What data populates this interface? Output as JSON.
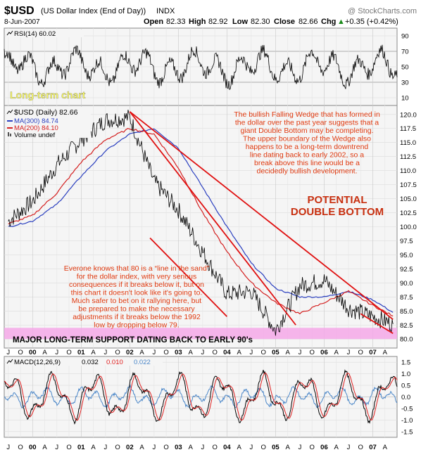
{
  "header": {
    "symbol": "$USD",
    "name": "(US Dollar Index (End of Day))",
    "exchange": "INDX",
    "watermark": "@ StockCharts.com",
    "date": "8-Jun-2007",
    "open_label": "Open",
    "open": "82.33",
    "high_label": "High",
    "high": "82.92",
    "low_label": "Low",
    "low": "82.30",
    "close_label": "Close",
    "close": "82.66",
    "chg_label": "Chg",
    "chg": "+0.35 (+0.42%)",
    "chg_arrow": "▲"
  },
  "rsi_panel": {
    "legend": "RSI(14) 60.02",
    "ticks": [
      90,
      70,
      50,
      30,
      10
    ],
    "range": [
      0,
      100
    ],
    "levels": [
      70,
      30
    ],
    "overlay_text": "Long-term chart"
  },
  "price_panel": {
    "legend_main": "$USD (Daily) 82.66",
    "legend_ma300": "MA(300) 84.74",
    "legend_ma200": "MA(200) 84.10",
    "legend_volume": "Volume undef",
    "ticks": [
      120.0,
      117.5,
      115.0,
      112.5,
      110.0,
      107.5,
      105.0,
      102.5,
      100.0,
      97.5,
      95.0,
      92.5,
      90.0,
      87.5,
      85.0,
      82.5,
      80.0
    ],
    "range": [
      78.4,
      121.6
    ],
    "annotation_wedge": [
      "The bullish Falling Wedge that has formed in",
      "the dollar over the past year suggests that a",
      "giant Double Bottom may be completing.",
      "The upper boundary of the Wedge also",
      "happens to be a long-term downtrend",
      "line dating back to early 2002, so a",
      "break above this line would be a",
      "decidedly bullish development."
    ],
    "annotation_pattern": [
      "POTENTIAL",
      "DOUBLE BOTTOM"
    ],
    "annotation_support": [
      "Everone knows that 80 is a “line in the sand”",
      "for the dollar index, with very serious",
      "consequences if it breaks below it, but on",
      "this chart it doesn't look like it's going to.",
      "Much safer to bet on it rallying here, but",
      "be prepared to make the necessary",
      "adjustments if it breaks below the 1992",
      "low by dropping below 79."
    ],
    "support_band_label": "MAJOR LONG-TERM SUPPORT DATING BACK TO EARLY 90's",
    "support_band_range": [
      80.0,
      82.0
    ]
  },
  "macd_panel": {
    "legend_prefix": "MACD(12,26,9)",
    "macd_value": "0.032",
    "signal_value": "0.010",
    "hist_value": "0.022",
    "ticks": [
      "1.5",
      "1.0",
      "0.5",
      "0.0",
      "-0.5",
      "-1.0",
      "-1.5"
    ],
    "range": [
      -1.75,
      1.75
    ]
  },
  "x_axis": {
    "labels": [
      "J",
      "O",
      "00",
      "A",
      "J",
      "O",
      "01",
      "A",
      "J",
      "O",
      "02",
      "A",
      "J",
      "O",
      "03",
      "A",
      "J",
      "O",
      "04",
      "A",
      "J",
      "O",
      "05",
      "A",
      "J",
      "O",
      "06",
      "A",
      "J",
      "O",
      "07",
      "A"
    ],
    "year_labels": [
      "00",
      "01",
      "02",
      "03",
      "04",
      "05",
      "06",
      "07"
    ]
  },
  "colors": {
    "price": "#000000",
    "ma300": "#2a3fbf",
    "ma200": "#d42020",
    "trendline": "#e01010",
    "annotation": "#e03a10",
    "pattern_text": "#c83010",
    "overlay_text": "#ffff66",
    "panel_bg": "#f5f5f5",
    "band": "#f4a8e8",
    "macd_line": "#000000",
    "signal_line": "#e02020",
    "hist": "#4a86c8"
  },
  "chart_data": [
    {
      "type": "line",
      "title": "RSI(14)",
      "ylim": [
        0,
        100
      ],
      "series": [
        {
          "name": "RSI(14)",
          "last": 60.02
        }
      ],
      "grid": true
    },
    {
      "type": "line",
      "title": "$USD (Daily)",
      "ylim": [
        78.4,
        121.6
      ],
      "x": [
        "1999-07",
        "2000-01",
        "2000-07",
        "2001-01",
        "2001-07",
        "2002-01",
        "2002-07",
        "2003-01",
        "2003-07",
        "2004-01",
        "2004-07",
        "2005-01",
        "2005-07",
        "2006-01",
        "2006-07",
        "2007-01",
        "2007-06"
      ],
      "series": [
        {
          "name": "$USD",
          "values": [
            101.0,
            104.5,
            111.0,
            115.5,
            119.0,
            119.5,
            108.0,
            103.0,
            95.5,
            88.0,
            88.5,
            81.5,
            89.5,
            90.5,
            85.5,
            84.0,
            82.66
          ],
          "last": 82.66
        },
        {
          "name": "MA(300)",
          "values": [
            100.0,
            101.0,
            104.0,
            109.0,
            113.5,
            116.5,
            117.5,
            114.0,
            107.0,
            100.0,
            93.5,
            89.0,
            87.5,
            87.5,
            88.5,
            87.0,
            84.74
          ],
          "last": 84.74
        },
        {
          "name": "MA(200)",
          "values": [
            100.5,
            102.0,
            106.0,
            111.5,
            115.5,
            117.5,
            116.5,
            110.5,
            102.5,
            95.5,
            90.0,
            86.5,
            84.5,
            86.5,
            88.5,
            86.0,
            84.1
          ],
          "last": 84.1
        }
      ],
      "trendlines": [
        {
          "from": [
            "2002-01",
            120.5
          ],
          "to": [
            "2007-06",
            83.5
          ]
        },
        {
          "from": [
            "2002-01",
            120.5
          ],
          "to": [
            "2005-06",
            82.5
          ]
        },
        {
          "from": [
            "2002-06",
            98.0
          ],
          "to": [
            "2004-01",
            84.0
          ]
        },
        {
          "from": [
            "2006-10",
            84.5
          ],
          "to": [
            "2007-06",
            81.0
          ]
        }
      ],
      "grid": true
    },
    {
      "type": "line",
      "title": "MACD(12,26,9)",
      "ylim": [
        -1.75,
        1.75
      ],
      "series": [
        {
          "name": "MACD",
          "last": 0.032
        },
        {
          "name": "Signal",
          "last": 0.01
        },
        {
          "name": "Histogram",
          "last": 0.022
        }
      ],
      "grid": true
    }
  ]
}
